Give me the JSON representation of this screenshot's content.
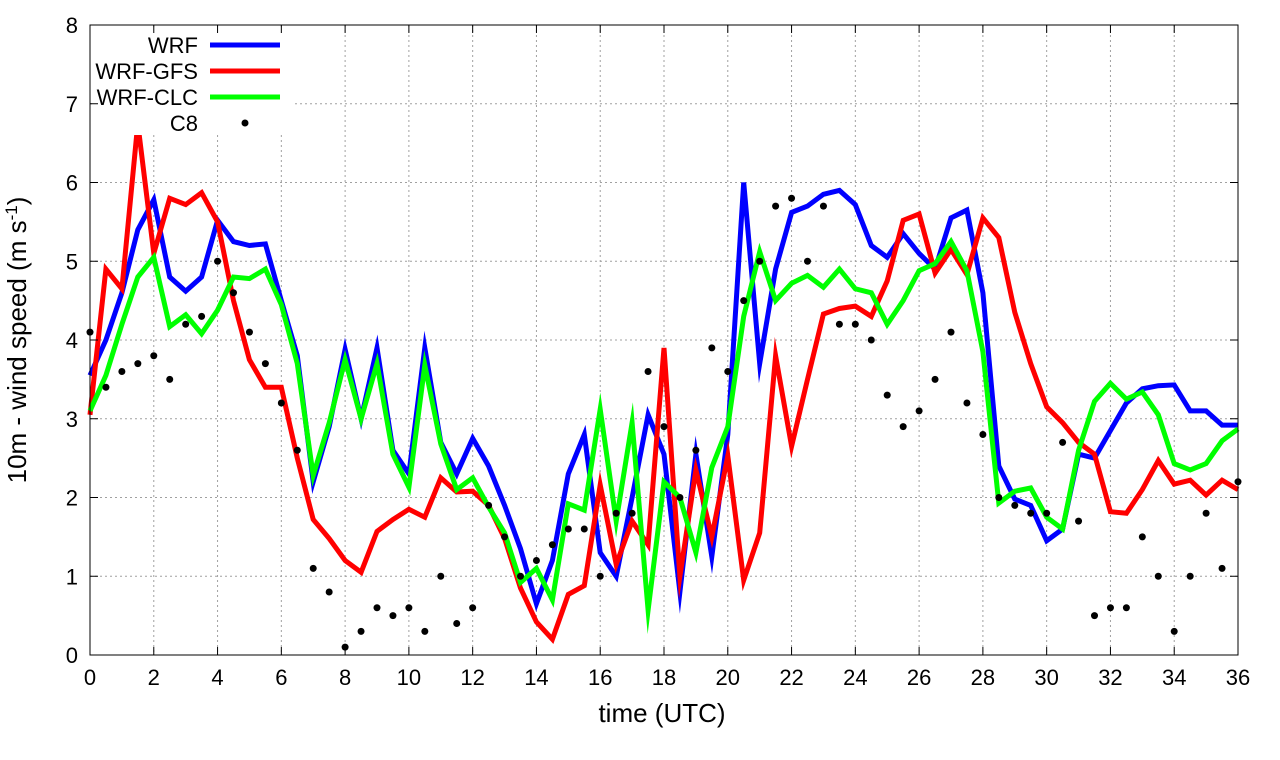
{
  "chart_data": {
    "type": "line",
    "xlabel": "time (UTC)",
    "ylabel_main": "10m - wind speed  (m s",
    "ylabel_sup": "-1",
    "ylabel_end": ")",
    "xlim": [
      0,
      36
    ],
    "ylim": [
      0,
      8
    ],
    "xticks": [
      "0",
      "2",
      "4",
      "6",
      "8",
      "10",
      "12",
      "14",
      "16",
      "18",
      "20",
      "22",
      "24",
      "26",
      "28",
      "30",
      "32",
      "34",
      "36"
    ],
    "yticks": [
      "0",
      "1",
      "2",
      "3",
      "4",
      "5",
      "6",
      "7",
      "8"
    ],
    "grid": true,
    "legend_position": "top-left",
    "x": [
      0,
      0.5,
      1,
      1.5,
      2,
      2.5,
      3,
      3.5,
      4,
      4.5,
      5,
      5.5,
      6,
      6.5,
      7,
      7.5,
      8,
      8.5,
      9,
      9.5,
      10,
      10.5,
      11,
      11.5,
      12,
      12.5,
      13,
      13.5,
      14,
      14.5,
      15,
      15.5,
      16,
      16.5,
      17,
      17.5,
      18,
      18.5,
      19,
      19.5,
      20,
      20.5,
      21,
      21.5,
      22,
      22.5,
      23,
      23.5,
      24,
      24.5,
      25,
      25.5,
      26,
      26.5,
      27,
      27.5,
      28,
      28.5,
      29,
      29.5,
      30,
      30.5,
      31,
      31.5,
      32,
      32.5,
      33,
      33.5,
      34,
      34.5,
      35,
      35.5,
      36
    ],
    "series": [
      {
        "name": "WRF",
        "color": "#0000ff",
        "style": "line",
        "values": [
          3.55,
          4.0,
          4.6,
          5.4,
          5.78,
          4.8,
          4.62,
          4.8,
          5.52,
          5.25,
          5.2,
          5.22,
          4.5,
          3.8,
          2.2,
          2.9,
          3.88,
          3.0,
          3.9,
          2.6,
          2.3,
          3.9,
          2.7,
          2.3,
          2.75,
          2.4,
          1.9,
          1.35,
          0.65,
          1.2,
          2.3,
          2.8,
          1.3,
          1.0,
          2.0,
          3.05,
          2.55,
          0.8,
          2.55,
          1.25,
          2.8,
          6.0,
          3.7,
          4.9,
          5.62,
          5.7,
          5.85,
          5.9,
          5.72,
          5.2,
          5.05,
          5.35,
          5.1,
          4.9,
          5.55,
          5.65,
          4.6,
          2.4,
          1.98,
          1.9,
          1.45,
          1.6,
          2.55,
          2.5,
          2.85,
          3.2,
          3.38,
          3.42,
          3.43,
          3.1,
          3.1,
          2.92,
          2.92
        ]
      },
      {
        "name": "WRF-GFS",
        "color": "#ff0000",
        "style": "line",
        "values": [
          3.05,
          4.9,
          4.65,
          6.75,
          5.1,
          5.8,
          5.72,
          5.87,
          5.5,
          4.5,
          3.75,
          3.4,
          3.4,
          2.5,
          1.72,
          1.48,
          1.2,
          1.05,
          1.57,
          1.72,
          1.85,
          1.75,
          2.25,
          2.07,
          2.08,
          1.9,
          1.48,
          0.85,
          0.42,
          0.2,
          0.77,
          0.88,
          2.16,
          1.15,
          1.7,
          1.4,
          3.9,
          1.0,
          2.35,
          1.5,
          2.53,
          0.95,
          1.55,
          3.8,
          2.65,
          3.5,
          4.33,
          4.4,
          4.43,
          4.3,
          4.75,
          5.52,
          5.6,
          4.85,
          5.15,
          4.83,
          5.55,
          5.3,
          4.35,
          3.7,
          3.15,
          2.95,
          2.7,
          2.55,
          1.82,
          1.8,
          2.1,
          2.47,
          2.17,
          2.22,
          2.03,
          2.22,
          2.1
        ]
      },
      {
        "name": "WRF-CLC",
        "color": "#00ff00",
        "style": "line",
        "values": [
          3.1,
          3.55,
          4.2,
          4.8,
          5.05,
          4.17,
          4.32,
          4.08,
          4.38,
          4.8,
          4.78,
          4.9,
          4.45,
          3.7,
          2.28,
          2.95,
          3.75,
          3.0,
          3.7,
          2.55,
          2.13,
          3.68,
          2.68,
          2.1,
          2.25,
          1.88,
          1.55,
          0.92,
          1.1,
          0.7,
          1.92,
          1.84,
          3.12,
          1.7,
          2.95,
          0.57,
          2.2,
          2.0,
          1.3,
          2.38,
          2.9,
          4.3,
          5.12,
          4.5,
          4.72,
          4.82,
          4.67,
          4.9,
          4.65,
          4.6,
          4.2,
          4.5,
          4.88,
          4.97,
          5.25,
          4.88,
          3.85,
          1.93,
          2.08,
          2.12,
          1.75,
          1.6,
          2.6,
          3.22,
          3.45,
          3.25,
          3.34,
          3.05,
          2.43,
          2.35,
          2.43,
          2.72,
          2.87
        ]
      },
      {
        "name": "C8",
        "color": "#000000",
        "style": "points",
        "values": [
          4.1,
          3.4,
          3.6,
          3.7,
          3.8,
          3.5,
          4.2,
          4.3,
          5.0,
          4.6,
          4.1,
          3.7,
          3.2,
          2.6,
          1.1,
          0.8,
          0.1,
          0.3,
          0.6,
          0.5,
          0.6,
          0.3,
          1.0,
          0.4,
          0.6,
          1.9,
          1.5,
          1.0,
          1.2,
          1.4,
          1.6,
          1.6,
          1.0,
          1.8,
          1.8,
          3.6,
          2.9,
          2.0,
          2.6,
          3.9,
          3.6,
          4.5,
          5.0,
          5.7,
          5.8,
          5.0,
          5.7,
          4.2,
          4.2,
          4.0,
          3.3,
          2.9,
          3.1,
          3.5,
          4.1,
          3.2,
          2.8,
          2.0,
          1.9,
          1.8,
          1.8,
          2.7,
          1.7,
          0.5,
          0.6,
          0.6,
          1.5,
          1.0,
          0.3,
          1.0,
          1.8,
          1.1,
          2.2
        ]
      }
    ],
    "extra_points": [
      {
        "series": "C8",
        "x": 4.9,
        "y": 6.75
      }
    ]
  }
}
